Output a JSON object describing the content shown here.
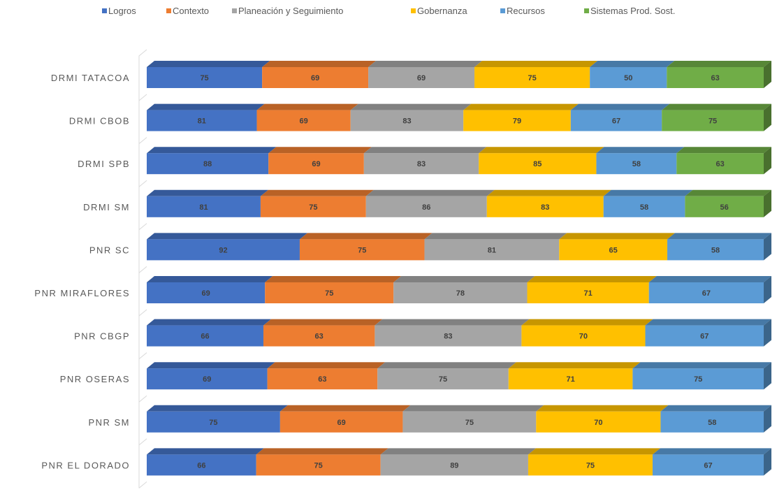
{
  "chart_data": {
    "type": "bar",
    "orientation": "horizontal",
    "stacked": true,
    "style": "3d",
    "legend_position": "top",
    "grid": false,
    "categories": [
      "DRMI TATACOA",
      "DRMI CBOB",
      "DRMI SPB",
      "DRMI SM",
      "PNR SC",
      "PNR MIRAFLORES",
      "PNR CBGP",
      "PNR OSERAS",
      "PNR SM",
      "PNR EL DORADO"
    ],
    "series": [
      {
        "name": "Logros",
        "color": "#4472C4",
        "values": [
          75,
          81,
          88,
          81,
          92,
          69,
          66,
          69,
          75,
          66
        ]
      },
      {
        "name": "Contexto",
        "color": "#ED7D31",
        "values": [
          69,
          69,
          69,
          75,
          75,
          75,
          63,
          63,
          69,
          75
        ]
      },
      {
        "name": "Planeación y Seguimiento",
        "color": "#A5A5A5",
        "values": [
          69,
          83,
          83,
          86,
          81,
          78,
          83,
          75,
          75,
          89
        ]
      },
      {
        "name": "Gobernanza",
        "color": "#FFC000",
        "values": [
          75,
          79,
          85,
          83,
          65,
          71,
          70,
          71,
          70,
          75
        ]
      },
      {
        "name": "Recursos",
        "color": "#5B9BD5",
        "values": [
          50,
          67,
          58,
          58,
          58,
          67,
          67,
          75,
          58,
          67
        ]
      },
      {
        "name": "Sistemas Prod. Sost.",
        "color": "#70AD47",
        "values": [
          63,
          75,
          63,
          56,
          null,
          null,
          null,
          null,
          null,
          null
        ]
      }
    ]
  }
}
